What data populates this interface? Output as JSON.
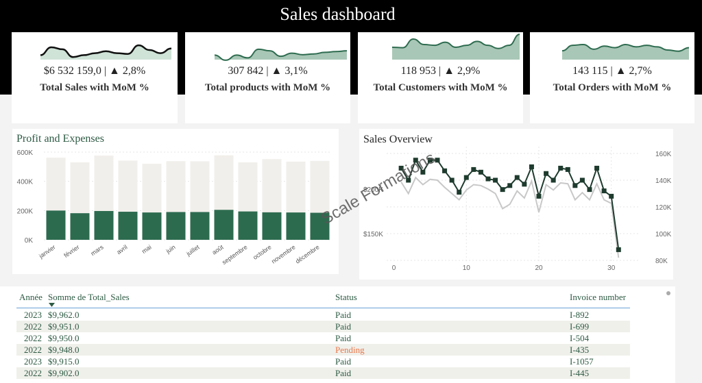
{
  "title": "Sales dashboard",
  "colors": {
    "accent": "#2d6b4f",
    "dark": "#1e3b2e",
    "bar_bg": "#f1efeb",
    "pending": "#e8784a"
  },
  "kpis": [
    {
      "value": "$6 532 159,0 |",
      "delta": "▲ 2,8%",
      "label": "Total Sales with MoM %",
      "spark": [
        55,
        35,
        40,
        60,
        55,
        50,
        45,
        50,
        52,
        30,
        42,
        50,
        38
      ]
    },
    {
      "value": "307 842 |",
      "delta": "▲ 3,1%",
      "label": "Total products with MoM %",
      "spark": [
        55,
        68,
        55,
        62,
        40,
        44,
        58,
        50,
        54,
        52,
        48,
        46,
        44
      ]
    },
    {
      "value": "118 953 |",
      "delta": "▲ 2,9%",
      "label": "Total Customers with MoM %",
      "spark": [
        35,
        36,
        14,
        28,
        30,
        22,
        35,
        30,
        20,
        30,
        38,
        30,
        2
      ]
    },
    {
      "value": "143 115 |",
      "delta": "▲ 2,7%",
      "label": "Total Orders with MoM %",
      "spark": [
        44,
        30,
        28,
        40,
        32,
        36,
        28,
        34,
        30,
        34,
        42,
        45,
        36
      ]
    }
  ],
  "profit_chart": {
    "title": "Profit and Expenses",
    "y_ticks": [
      "0K",
      "200K",
      "400K",
      "600K"
    ]
  },
  "sales_chart": {
    "title": "Sales Overview",
    "left_ticks": [
      "$150K",
      "$200K"
    ],
    "right_ticks": [
      "80K",
      "100K",
      "120K",
      "140K",
      "160K"
    ],
    "x_ticks": [
      "0",
      "10",
      "20",
      "30"
    ]
  },
  "chart_data": [
    {
      "type": "bar",
      "title": "Profit and Expenses",
      "categories": [
        "janvier",
        "février",
        "mars",
        "avril",
        "mai",
        "juin",
        "juillet",
        "août",
        "septembre",
        "octobre",
        "novembre",
        "décembre"
      ],
      "series": [
        {
          "values": [
            200000,
            182000,
            197000,
            192000,
            187000,
            190000,
            190000,
            205000,
            194000,
            188000,
            187000,
            185000
          ]
        },
        {
          "values": [
            562000,
            530000,
            576000,
            542000,
            520000,
            538000,
            537000,
            578000,
            530000,
            552000,
            535000,
            540000
          ]
        }
      ],
      "ylim": [
        0,
        600000
      ],
      "grid": true
    },
    {
      "type": "line",
      "title": "Sales Overview",
      "x": [
        1,
        2,
        3,
        4,
        5,
        6,
        7,
        8,
        9,
        10,
        11,
        12,
        13,
        14,
        15,
        16,
        17,
        18,
        19,
        20,
        21,
        22,
        23,
        24,
        25,
        26,
        27,
        28,
        29,
        30,
        31
      ],
      "series": [
        {
          "axis": "right",
          "values": [
            149,
            140,
            155,
            146,
            155,
            155,
            147,
            140,
            131,
            142,
            148,
            146,
            141,
            140,
            133,
            136,
            142,
            137,
            150,
            128,
            145,
            140,
            149,
            148,
            136,
            140,
            133,
            149,
            132,
            128,
            88
          ]
        },
        {
          "axis": "left",
          "values": [
            208,
            195,
            213,
            205,
            211,
            210,
            202,
            195,
            188,
            199,
            205,
            204,
            200,
            195,
            178,
            183,
            198,
            190,
            209,
            174,
            205,
            199,
            207,
            206,
            188,
            196,
            188,
            206,
            188,
            184,
            123
          ]
        }
      ],
      "xlim": [
        -1,
        34
      ],
      "ylim_right": [
        78,
        165
      ],
      "ylim_left": [
        110,
        240
      ],
      "grid": true
    }
  ],
  "watermark": "Scale Formations",
  "table": {
    "headers": [
      "Année",
      "Somme de Total_Sales",
      "Status",
      "Invoice number"
    ],
    "rows": [
      {
        "year": "2023",
        "sales": "$9,962.0",
        "status": "Paid",
        "invoice": "I-892"
      },
      {
        "year": "2022",
        "sales": "$9,951.0",
        "status": "Paid",
        "invoice": "I-699"
      },
      {
        "year": "2022",
        "sales": "$9,950.0",
        "status": "Paid",
        "invoice": "I-504"
      },
      {
        "year": "2022",
        "sales": "$9,948.0",
        "status": "Pending",
        "invoice": "I-435"
      },
      {
        "year": "2023",
        "sales": "$9,915.0",
        "status": "Paid",
        "invoice": "I-1057"
      },
      {
        "year": "2022",
        "sales": "$9,902.0",
        "status": "Paid",
        "invoice": "I-445"
      }
    ]
  }
}
